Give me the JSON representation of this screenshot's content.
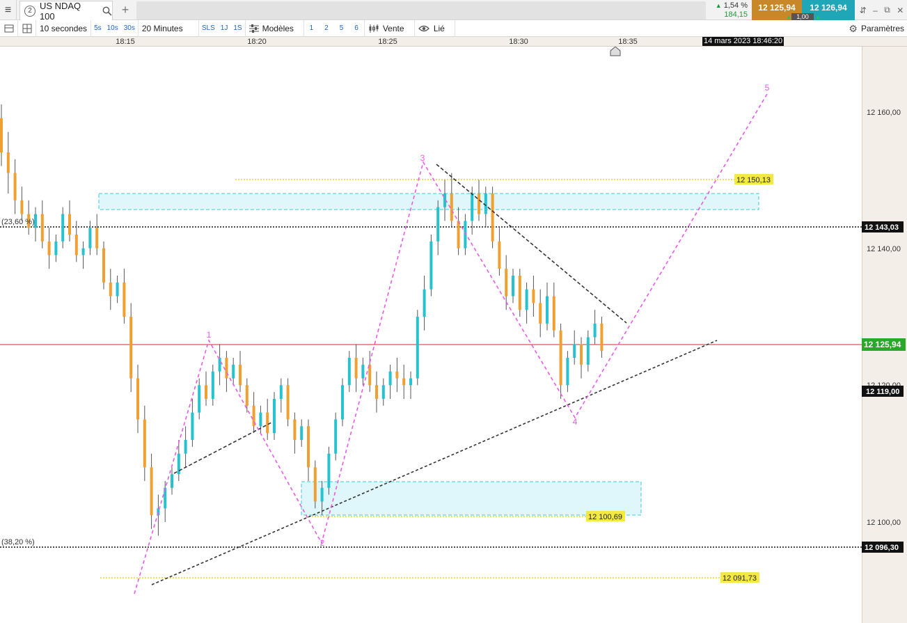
{
  "app": {
    "instrument_number": "2",
    "instrument_name": "US NDAQ 100",
    "change_pct": "1,54 %",
    "change_abs": "184,15",
    "bid": "12 125,94",
    "ask": "12 126,94",
    "spread": "1,00"
  },
  "toolbar": {
    "interval_label": "10 secondes",
    "quick_intervals": [
      "5s",
      "10s",
      "30s"
    ],
    "range_label": "20 Minutes",
    "sls": "SLS",
    "periods": [
      "1J",
      "1S"
    ],
    "models_label": "Modèles",
    "counts": [
      "1",
      "2",
      "5",
      "6"
    ],
    "sell_label": "Vente",
    "linked_label": "Lié",
    "settings_label": "Paramètres"
  },
  "time_axis": {
    "labels": [
      "18:15",
      "18:20",
      "18:25",
      "18:30",
      "18:35"
    ],
    "cursor_datetime": "14 mars 2023 18:46:20"
  },
  "chart_data": {
    "type": "candlestick",
    "instrument": "US NDAQ 100",
    "y_axis_ticks": [
      "12 160,00",
      "12 140,00",
      "12 100,00"
    ],
    "price_tags": {
      "current": "12 125,94",
      "level_119": "12 119,00",
      "fib_236": "12 143,03",
      "fib_382": "12 096,30",
      "resistance": "12 150,13",
      "zone_low": "12 100,69",
      "low": "12 091,73"
    },
    "fib_labels": [
      "(23,60 %)",
      "(38,20 %)"
    ],
    "wave_labels": [
      "1",
      "2",
      "3",
      "4",
      "5"
    ],
    "colors": {
      "up": "#26c2d0",
      "down": "#f0a030",
      "wave": "#e85ce8",
      "current_line": "#d42a2a",
      "zone": "#dff6fa",
      "level_tag": "#f4e842",
      "current_tag": "#2aa82a"
    },
    "candles": [
      [
        12159,
        12161,
        12152,
        12154
      ],
      [
        12154,
        12157,
        12148,
        12151
      ],
      [
        12151,
        12153,
        12145,
        12147
      ],
      [
        12147,
        12149,
        12144,
        12145
      ],
      [
        12145,
        12147,
        12142,
        12143
      ],
      [
        12143,
        12146,
        12141,
        12145
      ],
      [
        12145,
        12147,
        12140,
        12141
      ],
      [
        12141,
        12143,
        12137,
        12139
      ],
      [
        12139,
        12142,
        12138,
        12141
      ],
      [
        12141,
        12146,
        12140,
        12145
      ],
      [
        12145,
        12147,
        12141,
        12142
      ],
      [
        12142,
        12144,
        12138,
        12139
      ],
      [
        12139,
        12141,
        12137,
        12140
      ],
      [
        12140,
        12144,
        12139,
        12143
      ],
      [
        12143,
        12145,
        12139,
        12140
      ],
      [
        12140,
        12141,
        12134,
        12135
      ],
      [
        12135,
        12137,
        12131,
        12133
      ],
      [
        12133,
        12136,
        12132,
        12135
      ],
      [
        12135,
        12137,
        12129,
        12130
      ],
      [
        12130,
        12132,
        12119,
        12121
      ],
      [
        12121,
        12123,
        12113,
        12115
      ],
      [
        12115,
        12117,
        12106,
        12108
      ],
      [
        12108,
        12110,
        12099,
        12101
      ],
      [
        12101,
        12104,
        12098,
        12102
      ],
      [
        12102,
        12106,
        12100,
        12105
      ],
      [
        12105,
        12108,
        12104,
        12107
      ],
      [
        12107,
        12112,
        12106,
        12110
      ],
      [
        12110,
        12114,
        12108,
        12112
      ],
      [
        12112,
        12118,
        12111,
        12116
      ],
      [
        12116,
        12121,
        12115,
        12120
      ],
      [
        12120,
        12122,
        12117,
        12118
      ],
      [
        12118,
        12123,
        12117,
        12122
      ],
      [
        12122,
        12126,
        12120,
        12124
      ],
      [
        12124,
        12125,
        12119,
        12121
      ],
      [
        12121,
        12124,
        12120,
        12123
      ],
      [
        12123,
        12125,
        12119,
        12120
      ],
      [
        12120,
        12121,
        12116,
        12117
      ],
      [
        12117,
        12119,
        12113,
        12114
      ],
      [
        12114,
        12117,
        12113,
        12116
      ],
      [
        12116,
        12118,
        12112,
        12113
      ],
      [
        12113,
        12119,
        12112,
        12118
      ],
      [
        12118,
        12121,
        12116,
        12120
      ],
      [
        12120,
        12121,
        12114,
        12115
      ],
      [
        12115,
        12116,
        12110,
        12112
      ],
      [
        12112,
        12115,
        12111,
        12114
      ],
      [
        12114,
        12115,
        12106,
        12108
      ],
      [
        12108,
        12109,
        12102,
        12103
      ],
      [
        12103,
        12106,
        12101,
        12105
      ],
      [
        12105,
        12111,
        12104,
        12110
      ],
      [
        12110,
        12116,
        12109,
        12115
      ],
      [
        12115,
        12121,
        12114,
        12120
      ],
      [
        12120,
        12125,
        12119,
        12124
      ],
      [
        12124,
        12126,
        12119,
        12121
      ],
      [
        12121,
        12124,
        12120,
        12123
      ],
      [
        12123,
        12125,
        12119,
        12120
      ],
      [
        12120,
        12122,
        12116,
        12118
      ],
      [
        12118,
        12121,
        12117,
        12120
      ],
      [
        12120,
        12123,
        12118,
        12122
      ],
      [
        12122,
        12124,
        12119,
        12121
      ],
      [
        12121,
        12123,
        12118,
        12120
      ],
      [
        12120,
        12122,
        12118,
        12121
      ],
      [
        12121,
        12131,
        12120,
        12130
      ],
      [
        12130,
        12136,
        12128,
        12134
      ],
      [
        12134,
        12142,
        12133,
        12141
      ],
      [
        12141,
        12147,
        12139,
        12146
      ],
      [
        12146,
        12150,
        12144,
        12148
      ],
      [
        12148,
        12151,
        12143,
        12144
      ],
      [
        12144,
        12146,
        12139,
        12140
      ],
      [
        12140,
        12145,
        12139,
        12144
      ],
      [
        12144,
        12149,
        12142,
        12148
      ],
      [
        12148,
        12150,
        12144,
        12145
      ],
      [
        12145,
        12149,
        12143,
        12148
      ],
      [
        12148,
        12149,
        12140,
        12141
      ],
      [
        12141,
        12143,
        12136,
        12137
      ],
      [
        12137,
        12139,
        12131,
        12133
      ],
      [
        12133,
        12137,
        12132,
        12136
      ],
      [
        12136,
        12137,
        12130,
        12131
      ],
      [
        12131,
        12135,
        12129,
        12134
      ],
      [
        12134,
        12136,
        12130,
        12132
      ],
      [
        12132,
        12134,
        12127,
        12129
      ],
      [
        12129,
        12135,
        12128,
        12133
      ],
      [
        12133,
        12135,
        12127,
        12128
      ],
      [
        12128,
        12129,
        12118,
        12120
      ],
      [
        12120,
        12125,
        12119,
        12124
      ],
      [
        12124,
        12128,
        12123,
        12126
      ],
      [
        12126,
        12127,
        12121,
        12123
      ],
      [
        12123,
        12128,
        12122,
        12127
      ],
      [
        12127,
        12131,
        12126,
        12129
      ],
      [
        12129,
        12130,
        12124,
        12125
      ]
    ]
  }
}
